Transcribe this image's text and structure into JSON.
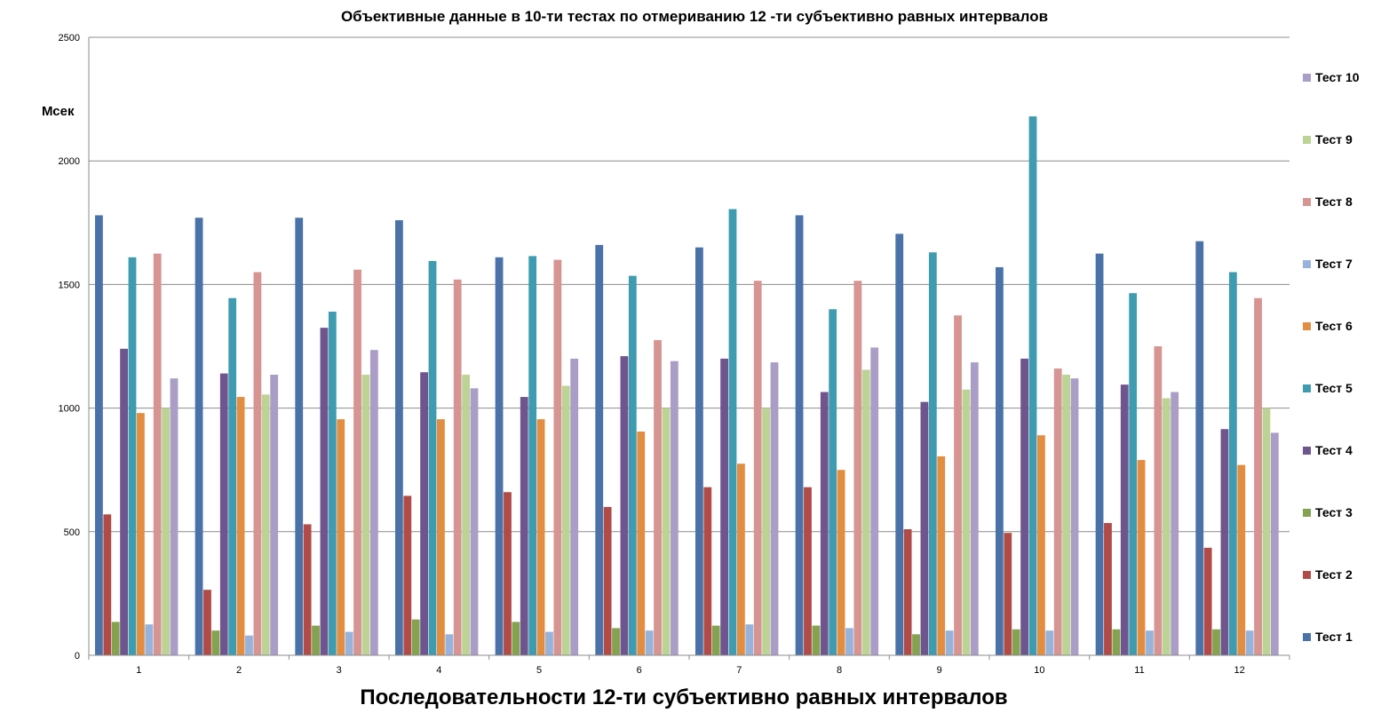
{
  "chart_data": {
    "type": "bar",
    "title": "Объективные данные  в 10-ти  тестах по отмериванию  12 -ти субъективно равных интервалов",
    "xlabel": "Последовательности 12-ти субъективно равных интервалов",
    "ylabel": "Мсек",
    "ylim": [
      0,
      2500
    ],
    "yticks": [
      0,
      500,
      1000,
      1500,
      2000,
      2500
    ],
    "grid": true,
    "legend_position": "right",
    "categories": [
      "1",
      "2",
      "3",
      "4",
      "5",
      "6",
      "7",
      "8",
      "9",
      "10",
      "11",
      "12"
    ],
    "series": [
      {
        "name": "Тест 1",
        "color": "#4a72a8",
        "values": [
          1780,
          1770,
          1770,
          1760,
          1610,
          1660,
          1650,
          1780,
          1705,
          1570,
          1625,
          1675
        ]
      },
      {
        "name": "Тест 2",
        "color": "#b04b47",
        "values": [
          570,
          265,
          530,
          645,
          660,
          600,
          680,
          680,
          510,
          495,
          535,
          435
        ]
      },
      {
        "name": "Тест 3",
        "color": "#84a24f",
        "values": [
          135,
          100,
          120,
          145,
          135,
          110,
          120,
          120,
          85,
          105,
          105,
          105
        ]
      },
      {
        "name": "Тест 4",
        "color": "#6e558e",
        "values": [
          1240,
          1140,
          1325,
          1145,
          1045,
          1210,
          1200,
          1065,
          1025,
          1200,
          1095,
          915
        ]
      },
      {
        "name": "Тест 5",
        "color": "#3f9bb0",
        "values": [
          1610,
          1445,
          1390,
          1595,
          1615,
          1535,
          1805,
          1400,
          1630,
          2180,
          1465,
          1550
        ]
      },
      {
        "name": "Тест 6",
        "color": "#e38d41",
        "values": [
          980,
          1045,
          955,
          955,
          955,
          905,
          775,
          750,
          805,
          890,
          790,
          770
        ]
      },
      {
        "name": "Тест 7",
        "color": "#97b3dc",
        "values": [
          125,
          80,
          95,
          85,
          95,
          100,
          125,
          110,
          100,
          100,
          100,
          100
        ]
      },
      {
        "name": "Тест 8",
        "color": "#d69492",
        "values": [
          1625,
          1550,
          1560,
          1520,
          1600,
          1275,
          1515,
          1515,
          1375,
          1160,
          1250,
          1445
        ]
      },
      {
        "name": "Тест 9",
        "color": "#bcd395",
        "values": [
          1000,
          1055,
          1135,
          1135,
          1090,
          1000,
          1000,
          1155,
          1075,
          1135,
          1040,
          1000
        ]
      },
      {
        "name": "Тест 10",
        "color": "#aa9dc6",
        "values": [
          1120,
          1135,
          1235,
          1080,
          1200,
          1190,
          1185,
          1245,
          1185,
          1120,
          1065,
          900
        ]
      }
    ]
  }
}
